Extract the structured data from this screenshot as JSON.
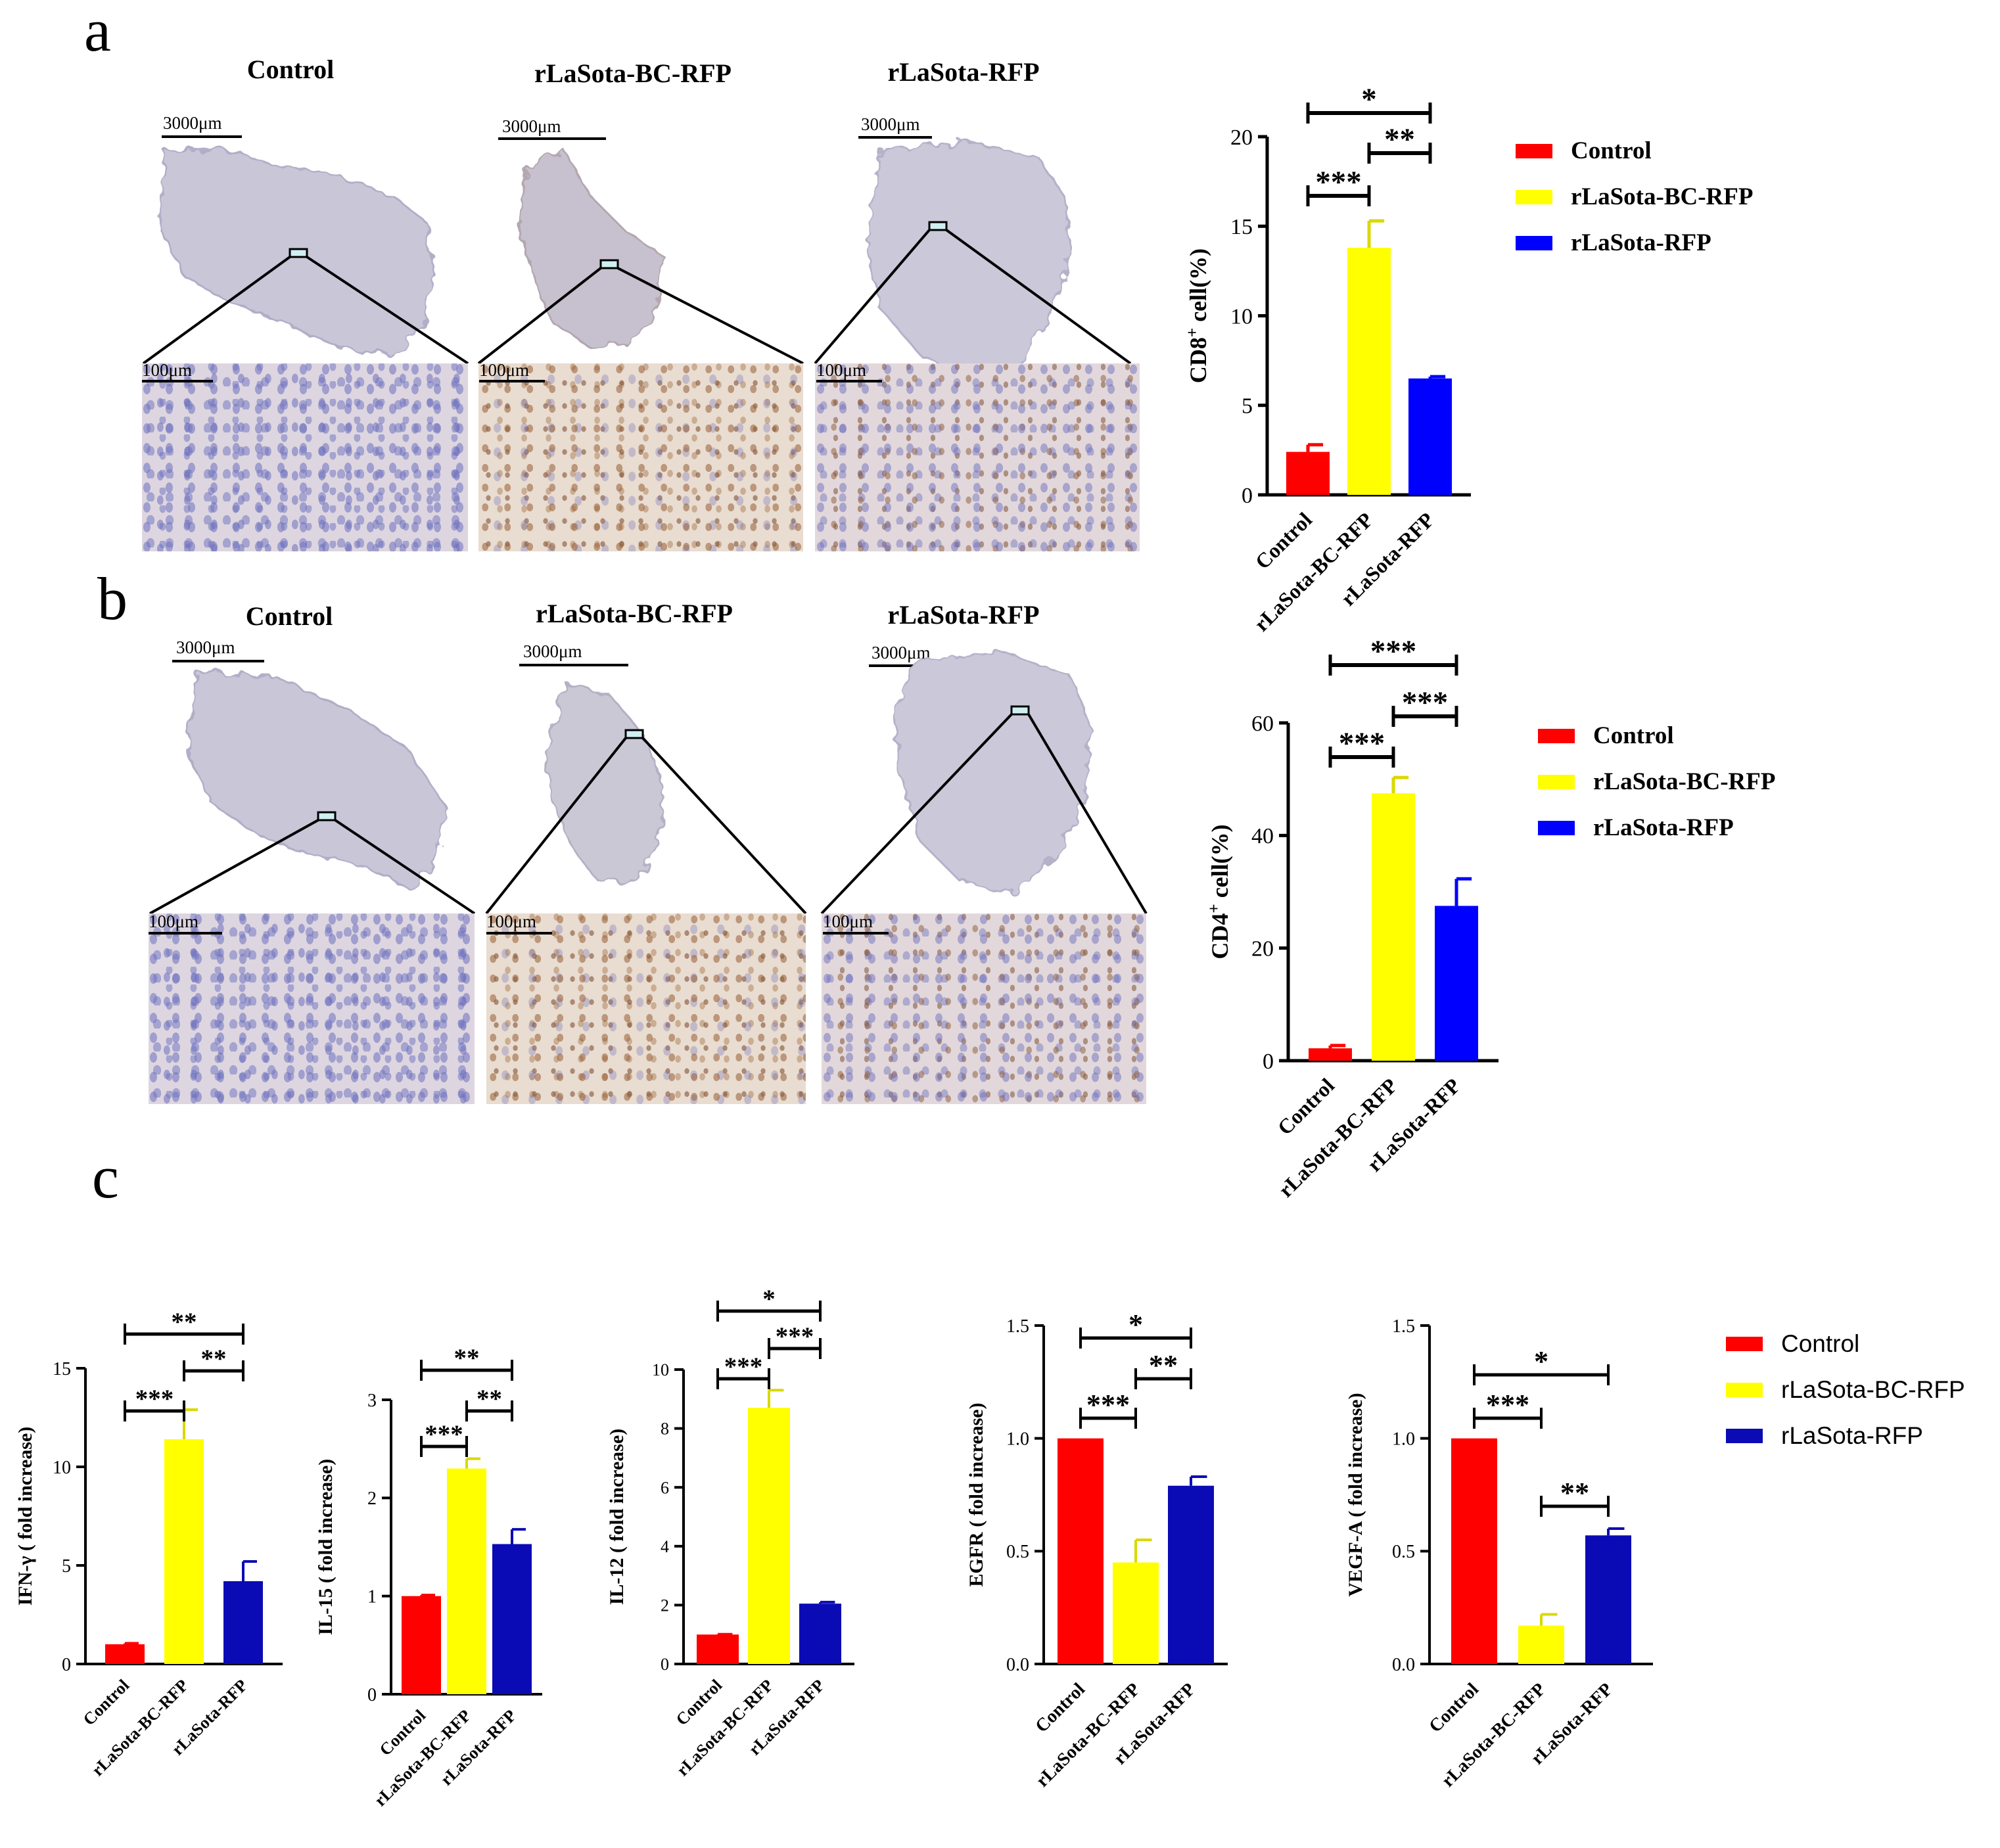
{
  "panels": {
    "a": "a",
    "b": "b",
    "c": "c"
  },
  "image_titles": [
    "Control",
    "rLaSota-BC-RFP",
    "rLaSota-RFP"
  ],
  "scale_bars": {
    "large": "3000μm",
    "small": "100μm"
  },
  "legend": {
    "labels": [
      "Control",
      "rLaSota-BC-RFP",
      "rLaSota-RFP"
    ],
    "colors": [
      "#ff0000",
      "#ffff00",
      "#0000ff"
    ],
    "colors_c": [
      "#ff0000",
      "#ffff00",
      "#0b0bb5"
    ]
  },
  "colors": {
    "red": "#ff0000",
    "yellow": "#ffff00",
    "blue": "#0000ff",
    "darkblue": "#0b0bb5"
  },
  "chart_data": [
    {
      "id": "cd8",
      "type": "bar",
      "categories": [
        "Control",
        "rLaSota-BC-RFP",
        "rLaSota-RFP"
      ],
      "values": [
        2.4,
        13.8,
        6.5
      ],
      "errors": [
        0.4,
        1.5,
        0.1
      ],
      "ylabel_pre": "CD8",
      "ylabel_sup": "+",
      "ylabel_post": " cell(%)",
      "ylim": [
        0,
        20
      ],
      "ticks": [
        "0",
        "5",
        "10",
        "15",
        "20"
      ],
      "significance": [
        {
          "from": 0,
          "to": 2,
          "label": "*"
        },
        {
          "from": 1,
          "to": 2,
          "label": "**"
        },
        {
          "from": 0,
          "to": 1,
          "label": "***"
        }
      ]
    },
    {
      "id": "cd4",
      "type": "bar",
      "categories": [
        "Control",
        "rLaSota-BC-RFP",
        "rLaSota-RFP"
      ],
      "values": [
        2.2,
        47.5,
        27.5
      ],
      "errors": [
        0.5,
        2.8,
        4.8
      ],
      "ylabel_pre": "CD4",
      "ylabel_sup": "+",
      "ylabel_post": " cell(%)",
      "ylim": [
        0,
        60
      ],
      "ticks": [
        "0",
        "20",
        "40",
        "60"
      ],
      "significance": [
        {
          "from": 0,
          "to": 2,
          "label": "***"
        },
        {
          "from": 1,
          "to": 2,
          "label": "***"
        },
        {
          "from": 0,
          "to": 1,
          "label": "***"
        }
      ]
    },
    {
      "id": "ifn",
      "type": "bar",
      "categories": [
        "Control",
        "rLaSota-BC-RFP",
        "rLaSota-RFP"
      ],
      "values": [
        1.0,
        11.4,
        4.2
      ],
      "errors": [
        0.05,
        1.5,
        1.0
      ],
      "ylabel_pre": "IFN-γ ( fold increase)",
      "ylim": [
        0,
        15
      ],
      "ticks": [
        "0",
        "5",
        "10",
        "15"
      ],
      "significance": [
        {
          "from": 0,
          "to": 2,
          "label": "**"
        },
        {
          "from": 1,
          "to": 2,
          "label": "**"
        },
        {
          "from": 0,
          "to": 1,
          "label": "***"
        }
      ]
    },
    {
      "id": "il15",
      "type": "bar",
      "categories": [
        "Control",
        "rLaSota-BC-RFP",
        "rLaSota-RFP"
      ],
      "values": [
        1.0,
        2.3,
        1.53
      ],
      "errors": [
        0.01,
        0.1,
        0.15
      ],
      "ylabel_pre": "IL-15 ( fold increase)",
      "ylim": [
        0,
        3
      ],
      "ticks": [
        "0",
        "1",
        "2",
        "3"
      ],
      "significance": [
        {
          "from": 0,
          "to": 2,
          "label": "**"
        },
        {
          "from": 1,
          "to": 2,
          "label": "**"
        },
        {
          "from": 0,
          "to": 1,
          "label": "***"
        }
      ]
    },
    {
      "id": "il12",
      "type": "bar",
      "categories": [
        "Control",
        "rLaSota-BC-RFP",
        "rLaSota-RFP"
      ],
      "values": [
        1.0,
        8.7,
        2.05
      ],
      "errors": [
        0.01,
        0.6,
        0.05
      ],
      "ylabel_pre": "IL-12 ( fold increase)",
      "ylim": [
        0,
        10
      ],
      "ticks": [
        "0",
        "2",
        "4",
        "6",
        "8",
        "10"
      ],
      "significance": [
        {
          "from": 0,
          "to": 2,
          "label": "*"
        },
        {
          "from": 1,
          "to": 2,
          "label": "***"
        },
        {
          "from": 0,
          "to": 1,
          "label": "***"
        }
      ]
    },
    {
      "id": "egfr",
      "type": "bar",
      "categories": [
        "Control",
        "rLaSota-BC-RFP",
        "rLaSota-RFP"
      ],
      "values": [
        1.0,
        0.45,
        0.79
      ],
      "errors": [
        0.0,
        0.1,
        0.04
      ],
      "ylabel_pre": "EGFR ( fold increase)",
      "ylim": [
        0,
        1.5
      ],
      "ticks": [
        "0.0",
        "0.5",
        "1.0",
        "1.5"
      ],
      "significance": [
        {
          "from": 0,
          "to": 2,
          "label": "*"
        },
        {
          "from": 1,
          "to": 2,
          "label": "**"
        },
        {
          "from": 0,
          "to": 1,
          "label": "***"
        }
      ]
    },
    {
      "id": "vegfa",
      "type": "bar",
      "categories": [
        "Control",
        "rLaSota-BC-RFP",
        "rLaSota-RFP"
      ],
      "values": [
        1.0,
        0.17,
        0.57
      ],
      "errors": [
        0.0,
        0.05,
        0.03
      ],
      "ylabel_pre": "VEGF-A ( fold increase)",
      "ylim": [
        0,
        1.5
      ],
      "ticks": [
        "0.0",
        "0.5",
        "1.0",
        "1.5"
      ],
      "significance": [
        {
          "from": 0,
          "to": 2,
          "label": "*"
        },
        {
          "from": 0,
          "to": 1,
          "label": "***"
        },
        {
          "from": 1,
          "to": 2,
          "label": "**"
        }
      ]
    }
  ]
}
